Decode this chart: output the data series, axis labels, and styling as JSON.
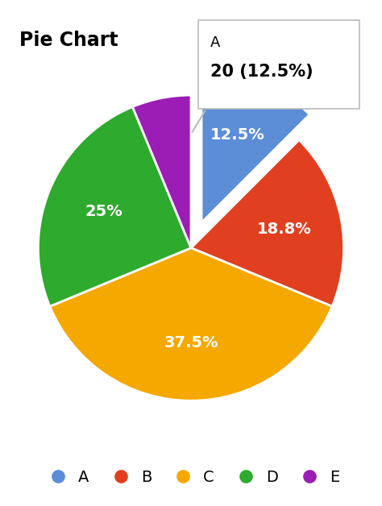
{
  "title": "Pie Chart",
  "slices": [
    {
      "label": "A",
      "value": 20,
      "pct": "12.5%",
      "color": "#5B8ED6",
      "show_label": true
    },
    {
      "label": "B",
      "value": 30,
      "pct": "18.8%",
      "color": "#E04020",
      "show_label": true
    },
    {
      "label": "C",
      "value": 60,
      "pct": "37.5%",
      "color": "#F5A800",
      "show_label": true
    },
    {
      "label": "D",
      "value": 40,
      "pct": "25%",
      "color": "#2EAA2E",
      "show_label": true
    },
    {
      "label": "E",
      "value": 10,
      "pct": "",
      "color": "#9B1DB5",
      "show_label": false
    }
  ],
  "explode_index": 0,
  "explode_amount": 0.18,
  "tooltip_line1": "A",
  "tooltip_line2": "20 (12.5%)",
  "bg_color": "#FFFFFF",
  "text_color": "#FFFFFF",
  "title_color": "#000000",
  "title_fontsize": 17,
  "label_fontsize": 14,
  "legend_fontsize": 14,
  "startangle": 90
}
